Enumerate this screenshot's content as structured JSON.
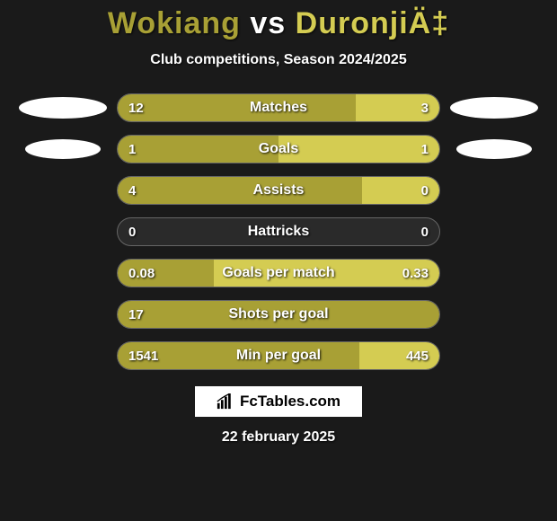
{
  "title": {
    "player1": "Wokiang",
    "vs": "vs",
    "player2": "DuronjiÄ‡"
  },
  "subtitle": "Club competitions, Season 2024/2025",
  "colors": {
    "left_bar": "#a8a035",
    "right_bar": "#d4cc52",
    "background": "#1a1a1a",
    "bar_bg": "#2a2a2a",
    "border": "#666666",
    "text": "#ffffff"
  },
  "side_badges": {
    "left": [
      {
        "row_index": 0,
        "size": "large"
      },
      {
        "row_index": 1,
        "size": "small"
      }
    ],
    "right": [
      {
        "row_index": 0,
        "size": "large"
      },
      {
        "row_index": 1,
        "size": "small"
      }
    ]
  },
  "stats": [
    {
      "label": "Matches",
      "left_val": "12",
      "right_val": "3",
      "left_pct": 74,
      "right_pct": 26
    },
    {
      "label": "Goals",
      "left_val": "1",
      "right_val": "1",
      "left_pct": 50,
      "right_pct": 50
    },
    {
      "label": "Assists",
      "left_val": "4",
      "right_val": "0",
      "left_pct": 76,
      "right_pct": 24
    },
    {
      "label": "Hattricks",
      "left_val": "0",
      "right_val": "0",
      "left_pct": 0,
      "right_pct": 0
    },
    {
      "label": "Goals per match",
      "left_val": "0.08",
      "right_val": "0.33",
      "left_pct": 30,
      "right_pct": 70
    },
    {
      "label": "Shots per goal",
      "left_val": "17",
      "right_val": "",
      "left_pct": 100,
      "right_pct": 0
    },
    {
      "label": "Min per goal",
      "left_val": "1541",
      "right_val": "445",
      "left_pct": 75,
      "right_pct": 25
    }
  ],
  "watermark": {
    "text": "FcTables.com",
    "icon": "bar-chart-icon"
  },
  "date": "22 february 2025"
}
